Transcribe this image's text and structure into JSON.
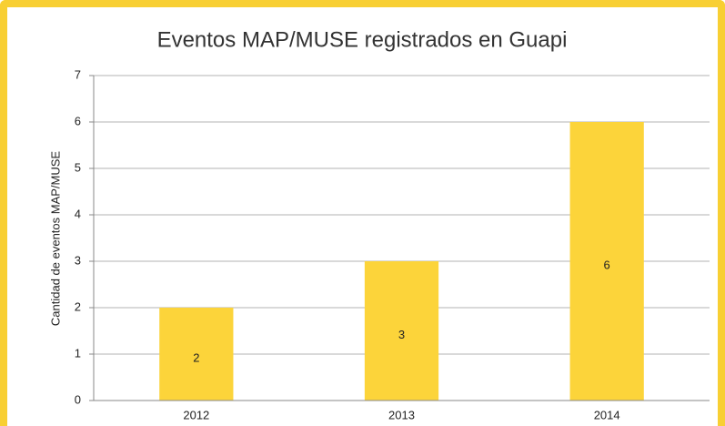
{
  "chart_data": {
    "type": "bar",
    "title": "Eventos MAP/MUSE registrados en Guapi",
    "y_label": "Cantidad de eventos MAP/MUSE",
    "categories": [
      "2012",
      "2013",
      "2014"
    ],
    "values": [
      2,
      3,
      6
    ],
    "color": "#fcd43a",
    "ylim": [
      0,
      7
    ],
    "yticks": [
      0,
      1,
      2,
      3,
      4,
      5,
      6,
      7
    ],
    "grid": true
  }
}
